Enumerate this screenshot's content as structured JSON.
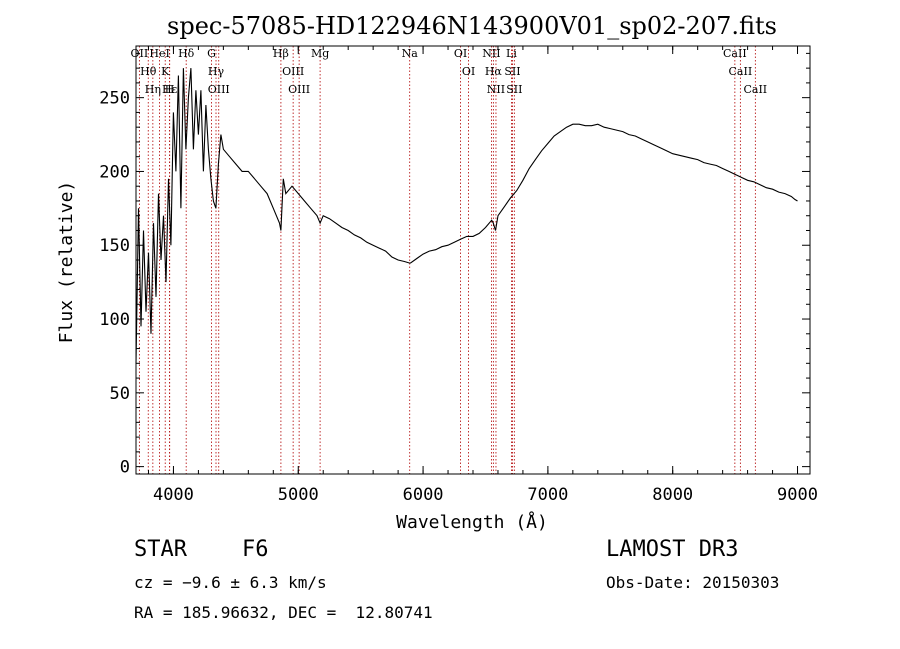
{
  "chart_data": {
    "type": "line",
    "title": "spec-57085-HD122946N143900V01_sp02-207.fits",
    "xlabel": "Wavelength (Å)",
    "ylabel": "Flux (relative)",
    "xlim": [
      3700,
      9100
    ],
    "ylim": [
      -5,
      285
    ],
    "x_ticks": [
      4000,
      5000,
      6000,
      7000,
      8000,
      9000
    ],
    "y_ticks": [
      0,
      50,
      100,
      150,
      200,
      250
    ],
    "series": [
      {
        "name": "flux",
        "color": "#000000",
        "x": [
          3700,
          3720,
          3740,
          3760,
          3780,
          3800,
          3820,
          3840,
          3860,
          3880,
          3900,
          3920,
          3940,
          3960,
          3980,
          4000,
          4020,
          4040,
          4060,
          4080,
          4100,
          4120,
          4140,
          4160,
          4180,
          4200,
          4220,
          4240,
          4260,
          4280,
          4300,
          4320,
          4340,
          4360,
          4380,
          4400,
          4450,
          4500,
          4550,
          4600,
          4650,
          4700,
          4750,
          4800,
          4850,
          4861,
          4880,
          4900,
          4950,
          5000,
          5050,
          5100,
          5150,
          5175,
          5200,
          5250,
          5300,
          5350,
          5400,
          5450,
          5500,
          5550,
          5600,
          5650,
          5700,
          5750,
          5800,
          5850,
          5890,
          5900,
          5950,
          6000,
          6050,
          6100,
          6150,
          6200,
          6250,
          6300,
          6350,
          6400,
          6450,
          6500,
          6550,
          6563,
          6580,
          6600,
          6650,
          6700,
          6750,
          6800,
          6850,
          6900,
          6950,
          7000,
          7050,
          7100,
          7150,
          7200,
          7250,
          7300,
          7350,
          7400,
          7450,
          7500,
          7550,
          7600,
          7650,
          7700,
          7750,
          7800,
          7850,
          7900,
          7950,
          8000,
          8050,
          8100,
          8150,
          8200,
          8250,
          8300,
          8350,
          8400,
          8450,
          8500,
          8550,
          8600,
          8650,
          8700,
          8750,
          8800,
          8850,
          8900,
          8950,
          8980,
          9000
        ],
        "values": [
          70,
          175,
          95,
          160,
          105,
          145,
          90,
          165,
          115,
          185,
          140,
          170,
          125,
          195,
          150,
          240,
          200,
          265,
          175,
          270,
          215,
          250,
          270,
          215,
          255,
          225,
          255,
          200,
          245,
          215,
          195,
          180,
          175,
          205,
          225,
          215,
          210,
          205,
          200,
          200,
          195,
          190,
          185,
          175,
          165,
          160,
          195,
          185,
          190,
          185,
          180,
          175,
          170,
          165,
          170,
          168,
          165,
          162,
          160,
          157,
          155,
          152,
          150,
          148,
          146,
          142,
          140,
          139,
          138,
          138,
          141,
          144,
          146,
          147,
          149,
          150,
          152,
          154,
          156,
          156,
          158,
          162,
          167,
          165,
          160,
          170,
          176,
          182,
          187,
          194,
          202,
          208,
          214,
          219,
          224,
          227,
          230,
          232,
          232,
          231,
          231,
          232,
          230,
          229,
          228,
          227,
          225,
          224,
          222,
          220,
          218,
          216,
          214,
          212,
          211,
          210,
          209,
          208,
          206,
          205,
          204,
          202,
          200,
          198,
          196,
          194,
          193,
          191,
          189,
          188,
          186,
          185,
          183,
          181,
          180
        ]
      }
    ],
    "lines": [
      {
        "name": "Hθ",
        "x": 3798
      },
      {
        "name": "OII",
        "x": 3727
      },
      {
        "name": "Hη",
        "x": 3835
      },
      {
        "name": "HeI",
        "x": 3889
      },
      {
        "name": "K",
        "x": 3934
      },
      {
        "name": "H",
        "x": 3969
      },
      {
        "name": "Hε",
        "x": 3970
      },
      {
        "name": "Hδ",
        "x": 4102
      },
      {
        "name": "G",
        "x": 4305
      },
      {
        "name": "Hγ",
        "x": 4341
      },
      {
        "name": "OIII",
        "x": 4363
      },
      {
        "name": "Hβ",
        "x": 4861
      },
      {
        "name": "OIII",
        "x": 4959
      },
      {
        "name": "OIII",
        "x": 5007
      },
      {
        "name": "Mg",
        "x": 5175
      },
      {
        "name": "Na",
        "x": 5893
      },
      {
        "name": "OI",
        "x": 6300
      },
      {
        "name": "OI",
        "x": 6364
      },
      {
        "name": "NII",
        "x": 6548
      },
      {
        "name": "Hα",
        "x": 6563
      },
      {
        "name": "NII",
        "x": 6584
      },
      {
        "name": "Li",
        "x": 6708
      },
      {
        "name": "SII",
        "x": 6716
      },
      {
        "name": "SII",
        "x": 6731
      },
      {
        "name": "CaII",
        "x": 8498
      },
      {
        "name": "CaII",
        "x": 8542
      },
      {
        "name": "CaII",
        "x": 8662
      }
    ]
  },
  "info": {
    "object_class": "STAR",
    "subclass": "F6",
    "survey": "LAMOST DR3",
    "velocity": "cz = −9.6 ± 6.3 km/s",
    "obs_date": "Obs-Date: 20150303",
    "coords": "RA = 185.96632, DEC =  12.80741"
  },
  "colors": {
    "line_marker": "#b00000",
    "spectrum": "#000000",
    "axes": "#000000"
  }
}
